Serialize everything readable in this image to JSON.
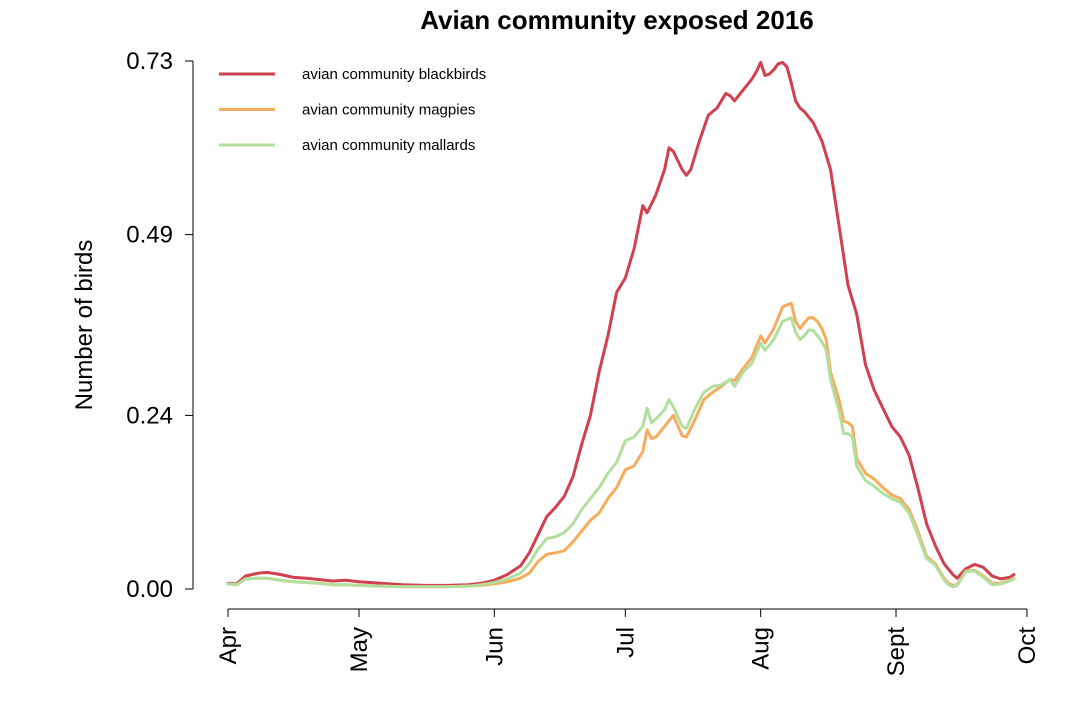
{
  "chart_data": {
    "type": "line",
    "title": "Avian community exposed 2016",
    "xlabel": "",
    "ylabel": "Number of birds",
    "ylim": [
      0,
      0.73
    ],
    "y_ticks": [
      "0.00",
      "0.24",
      "0.49",
      "0.73"
    ],
    "y_tick_values": [
      0,
      0.24,
      0.49,
      0.73
    ],
    "xlim": [
      "2016-04-01",
      "2016-10-01"
    ],
    "x_ticks": [
      {
        "label": "Apr",
        "date": "2016-04-01"
      },
      {
        "label": "May",
        "date": "2016-05-01"
      },
      {
        "label": "Jun",
        "date": "2016-06-01"
      },
      {
        "label": "Jul",
        "date": "2016-07-01"
      },
      {
        "label": "Aug",
        "date": "2016-08-01"
      },
      {
        "label": "Sept",
        "date": "2016-09-01"
      },
      {
        "label": "Oct",
        "date": "2016-10-01"
      }
    ],
    "grid": false,
    "legend": "top-left",
    "series": [
      {
        "name": "avian community blackbirds",
        "color": "#d1404f",
        "points": [
          [
            "2016-04-01",
            0.008
          ],
          [
            "2016-04-03",
            0.007
          ],
          [
            "2016-04-05",
            0.018
          ],
          [
            "2016-04-08",
            0.022
          ],
          [
            "2016-04-10",
            0.023
          ],
          [
            "2016-04-13",
            0.02
          ],
          [
            "2016-04-16",
            0.016
          ],
          [
            "2016-04-19",
            0.015
          ],
          [
            "2016-04-22",
            0.013
          ],
          [
            "2016-04-25",
            0.011
          ],
          [
            "2016-04-28",
            0.012
          ],
          [
            "2016-05-01",
            0.01
          ],
          [
            "2016-05-06",
            0.008
          ],
          [
            "2016-05-11",
            0.006
          ],
          [
            "2016-05-16",
            0.005
          ],
          [
            "2016-05-21",
            0.005
          ],
          [
            "2016-05-26",
            0.006
          ],
          [
            "2016-05-29",
            0.008
          ],
          [
            "2016-06-01",
            0.012
          ],
          [
            "2016-06-04",
            0.02
          ],
          [
            "2016-06-07",
            0.032
          ],
          [
            "2016-06-09",
            0.05
          ],
          [
            "2016-06-11",
            0.075
          ],
          [
            "2016-06-13",
            0.1
          ],
          [
            "2016-06-15",
            0.113
          ],
          [
            "2016-06-17",
            0.128
          ],
          [
            "2016-06-19",
            0.155
          ],
          [
            "2016-06-21",
            0.2
          ],
          [
            "2016-06-23",
            0.24
          ],
          [
            "2016-06-25",
            0.3
          ],
          [
            "2016-06-27",
            0.35
          ],
          [
            "2016-06-29",
            0.41
          ],
          [
            "2016-07-01",
            0.43
          ],
          [
            "2016-07-03",
            0.47
          ],
          [
            "2016-07-05",
            0.53
          ],
          [
            "2016-07-06",
            0.52
          ],
          [
            "2016-07-08",
            0.545
          ],
          [
            "2016-07-10",
            0.58
          ],
          [
            "2016-07-11",
            0.61
          ],
          [
            "2016-07-12",
            0.605
          ],
          [
            "2016-07-14",
            0.58
          ],
          [
            "2016-07-15",
            0.572
          ],
          [
            "2016-07-16",
            0.58
          ],
          [
            "2016-07-18",
            0.62
          ],
          [
            "2016-07-20",
            0.655
          ],
          [
            "2016-07-22",
            0.665
          ],
          [
            "2016-07-23",
            0.675
          ],
          [
            "2016-07-24",
            0.685
          ],
          [
            "2016-07-25",
            0.682
          ],
          [
            "2016-07-26",
            0.675
          ],
          [
            "2016-07-28",
            0.69
          ],
          [
            "2016-07-30",
            0.705
          ],
          [
            "2016-07-31",
            0.715
          ],
          [
            "2016-08-01",
            0.728
          ],
          [
            "2016-08-02",
            0.71
          ],
          [
            "2016-08-03",
            0.712
          ],
          [
            "2016-08-04",
            0.718
          ],
          [
            "2016-08-05",
            0.726
          ],
          [
            "2016-08-06",
            0.728
          ],
          [
            "2016-08-07",
            0.722
          ],
          [
            "2016-08-08",
            0.7
          ],
          [
            "2016-08-09",
            0.675
          ],
          [
            "2016-08-10",
            0.665
          ],
          [
            "2016-08-11",
            0.66
          ],
          [
            "2016-08-13",
            0.645
          ],
          [
            "2016-08-15",
            0.62
          ],
          [
            "2016-08-17",
            0.58
          ],
          [
            "2016-08-19",
            0.5
          ],
          [
            "2016-08-21",
            0.42
          ],
          [
            "2016-08-23",
            0.38
          ],
          [
            "2016-08-25",
            0.31
          ],
          [
            "2016-08-27",
            0.275
          ],
          [
            "2016-08-29",
            0.25
          ],
          [
            "2016-08-31",
            0.225
          ],
          [
            "2016-09-02",
            0.21
          ],
          [
            "2016-09-04",
            0.185
          ],
          [
            "2016-09-06",
            0.14
          ],
          [
            "2016-09-08",
            0.09
          ],
          [
            "2016-09-10",
            0.06
          ],
          [
            "2016-09-12",
            0.035
          ],
          [
            "2016-09-14",
            0.02
          ],
          [
            "2016-09-15",
            0.015
          ],
          [
            "2016-09-17",
            0.028
          ],
          [
            "2016-09-19",
            0.034
          ],
          [
            "2016-09-21",
            0.03
          ],
          [
            "2016-09-23",
            0.018
          ],
          [
            "2016-09-25",
            0.014
          ],
          [
            "2016-09-27",
            0.016
          ],
          [
            "2016-09-28",
            0.02
          ]
        ]
      },
      {
        "name": "avian community magpies",
        "color": "#f6ac5d",
        "points": [
          [
            "2016-04-01",
            0.007
          ],
          [
            "2016-04-03",
            0.006
          ],
          [
            "2016-04-05",
            0.014
          ],
          [
            "2016-04-08",
            0.015
          ],
          [
            "2016-04-10",
            0.015
          ],
          [
            "2016-04-13",
            0.012
          ],
          [
            "2016-04-16",
            0.01
          ],
          [
            "2016-04-19",
            0.009
          ],
          [
            "2016-04-22",
            0.008
          ],
          [
            "2016-04-25",
            0.006
          ],
          [
            "2016-04-28",
            0.006
          ],
          [
            "2016-05-01",
            0.005
          ],
          [
            "2016-05-06",
            0.004
          ],
          [
            "2016-05-11",
            0.003
          ],
          [
            "2016-05-16",
            0.003
          ],
          [
            "2016-05-21",
            0.003
          ],
          [
            "2016-05-26",
            0.004
          ],
          [
            "2016-05-29",
            0.005
          ],
          [
            "2016-06-01",
            0.007
          ],
          [
            "2016-06-04",
            0.01
          ],
          [
            "2016-06-07",
            0.015
          ],
          [
            "2016-06-09",
            0.022
          ],
          [
            "2016-06-11",
            0.038
          ],
          [
            "2016-06-13",
            0.048
          ],
          [
            "2016-06-15",
            0.05
          ],
          [
            "2016-06-17",
            0.053
          ],
          [
            "2016-06-19",
            0.065
          ],
          [
            "2016-06-21",
            0.08
          ],
          [
            "2016-06-23",
            0.095
          ],
          [
            "2016-06-25",
            0.105
          ],
          [
            "2016-06-27",
            0.125
          ],
          [
            "2016-06-29",
            0.14
          ],
          [
            "2016-07-01",
            0.165
          ],
          [
            "2016-07-03",
            0.17
          ],
          [
            "2016-07-05",
            0.19
          ],
          [
            "2016-07-06",
            0.22
          ],
          [
            "2016-07-07",
            0.208
          ],
          [
            "2016-07-08",
            0.21
          ],
          [
            "2016-07-10",
            0.225
          ],
          [
            "2016-07-12",
            0.24
          ],
          [
            "2016-07-14",
            0.212
          ],
          [
            "2016-07-15",
            0.21
          ],
          [
            "2016-07-17",
            0.235
          ],
          [
            "2016-07-19",
            0.262
          ],
          [
            "2016-07-21",
            0.272
          ],
          [
            "2016-07-23",
            0.28
          ],
          [
            "2016-07-25",
            0.29
          ],
          [
            "2016-07-26",
            0.288
          ],
          [
            "2016-07-28",
            0.305
          ],
          [
            "2016-07-30",
            0.32
          ],
          [
            "2016-08-01",
            0.35
          ],
          [
            "2016-08-02",
            0.34
          ],
          [
            "2016-08-04",
            0.36
          ],
          [
            "2016-08-06",
            0.39
          ],
          [
            "2016-08-08",
            0.395
          ],
          [
            "2016-08-09",
            0.37
          ],
          [
            "2016-08-10",
            0.36
          ],
          [
            "2016-08-11",
            0.368
          ],
          [
            "2016-08-12",
            0.375
          ],
          [
            "2016-08-13",
            0.375
          ],
          [
            "2016-08-14",
            0.37
          ],
          [
            "2016-08-15",
            0.36
          ],
          [
            "2016-08-16",
            0.345
          ],
          [
            "2016-08-17",
            0.3
          ],
          [
            "2016-08-19",
            0.26
          ],
          [
            "2016-08-20",
            0.232
          ],
          [
            "2016-08-21",
            0.23
          ],
          [
            "2016-08-22",
            0.225
          ],
          [
            "2016-08-23",
            0.18
          ],
          [
            "2016-08-25",
            0.16
          ],
          [
            "2016-08-27",
            0.152
          ],
          [
            "2016-08-29",
            0.14
          ],
          [
            "2016-08-31",
            0.13
          ],
          [
            "2016-09-02",
            0.125
          ],
          [
            "2016-09-04",
            0.11
          ],
          [
            "2016-09-06",
            0.08
          ],
          [
            "2016-09-08",
            0.045
          ],
          [
            "2016-09-10",
            0.035
          ],
          [
            "2016-09-12",
            0.015
          ],
          [
            "2016-09-13",
            0.008
          ],
          [
            "2016-09-14",
            0.005
          ],
          [
            "2016-09-15",
            0.006
          ],
          [
            "2016-09-17",
            0.025
          ],
          [
            "2016-09-19",
            0.026
          ],
          [
            "2016-09-21",
            0.018
          ],
          [
            "2016-09-23",
            0.008
          ],
          [
            "2016-09-25",
            0.008
          ],
          [
            "2016-09-27",
            0.012
          ],
          [
            "2016-09-28",
            0.015
          ]
        ]
      },
      {
        "name": "avian community mallards",
        "color": "#b3df9e",
        "points": [
          [
            "2016-04-01",
            0.007
          ],
          [
            "2016-04-03",
            0.006
          ],
          [
            "2016-04-05",
            0.014
          ],
          [
            "2016-04-08",
            0.015
          ],
          [
            "2016-04-10",
            0.015
          ],
          [
            "2016-04-13",
            0.012
          ],
          [
            "2016-04-16",
            0.01
          ],
          [
            "2016-04-19",
            0.009
          ],
          [
            "2016-04-22",
            0.008
          ],
          [
            "2016-04-25",
            0.006
          ],
          [
            "2016-04-28",
            0.006
          ],
          [
            "2016-05-01",
            0.005
          ],
          [
            "2016-05-06",
            0.004
          ],
          [
            "2016-05-11",
            0.003
          ],
          [
            "2016-05-16",
            0.003
          ],
          [
            "2016-05-21",
            0.003
          ],
          [
            "2016-05-26",
            0.004
          ],
          [
            "2016-05-29",
            0.006
          ],
          [
            "2016-06-01",
            0.009
          ],
          [
            "2016-06-04",
            0.014
          ],
          [
            "2016-06-07",
            0.022
          ],
          [
            "2016-06-09",
            0.035
          ],
          [
            "2016-06-11",
            0.055
          ],
          [
            "2016-06-13",
            0.07
          ],
          [
            "2016-06-15",
            0.072
          ],
          [
            "2016-06-17",
            0.078
          ],
          [
            "2016-06-19",
            0.09
          ],
          [
            "2016-06-21",
            0.11
          ],
          [
            "2016-06-23",
            0.125
          ],
          [
            "2016-06-25",
            0.14
          ],
          [
            "2016-06-27",
            0.16
          ],
          [
            "2016-06-29",
            0.175
          ],
          [
            "2016-07-01",
            0.205
          ],
          [
            "2016-07-03",
            0.21
          ],
          [
            "2016-07-05",
            0.225
          ],
          [
            "2016-07-06",
            0.25
          ],
          [
            "2016-07-07",
            0.23
          ],
          [
            "2016-07-08",
            0.235
          ],
          [
            "2016-07-10",
            0.248
          ],
          [
            "2016-07-11",
            0.262
          ],
          [
            "2016-07-12",
            0.252
          ],
          [
            "2016-07-14",
            0.225
          ],
          [
            "2016-07-15",
            0.222
          ],
          [
            "2016-07-17",
            0.25
          ],
          [
            "2016-07-19",
            0.272
          ],
          [
            "2016-07-21",
            0.28
          ],
          [
            "2016-07-23",
            0.282
          ],
          [
            "2016-07-25",
            0.29
          ],
          [
            "2016-07-26",
            0.28
          ],
          [
            "2016-07-28",
            0.3
          ],
          [
            "2016-07-30",
            0.312
          ],
          [
            "2016-08-01",
            0.34
          ],
          [
            "2016-08-02",
            0.33
          ],
          [
            "2016-08-04",
            0.345
          ],
          [
            "2016-08-06",
            0.37
          ],
          [
            "2016-08-08",
            0.375
          ],
          [
            "2016-08-09",
            0.355
          ],
          [
            "2016-08-10",
            0.345
          ],
          [
            "2016-08-11",
            0.35
          ],
          [
            "2016-08-12",
            0.358
          ],
          [
            "2016-08-13",
            0.358
          ],
          [
            "2016-08-14",
            0.35
          ],
          [
            "2016-08-15",
            0.342
          ],
          [
            "2016-08-16",
            0.33
          ],
          [
            "2016-08-17",
            0.29
          ],
          [
            "2016-08-19",
            0.245
          ],
          [
            "2016-08-20",
            0.215
          ],
          [
            "2016-08-21",
            0.215
          ],
          [
            "2016-08-22",
            0.21
          ],
          [
            "2016-08-23",
            0.17
          ],
          [
            "2016-08-25",
            0.15
          ],
          [
            "2016-08-27",
            0.142
          ],
          [
            "2016-08-29",
            0.132
          ],
          [
            "2016-08-31",
            0.125
          ],
          [
            "2016-09-02",
            0.12
          ],
          [
            "2016-09-04",
            0.105
          ],
          [
            "2016-09-06",
            0.075
          ],
          [
            "2016-09-08",
            0.042
          ],
          [
            "2016-09-10",
            0.033
          ],
          [
            "2016-09-12",
            0.013
          ],
          [
            "2016-09-13",
            0.006
          ],
          [
            "2016-09-14",
            0.003
          ],
          [
            "2016-09-15",
            0.005
          ],
          [
            "2016-09-17",
            0.024
          ],
          [
            "2016-09-19",
            0.025
          ],
          [
            "2016-09-21",
            0.016
          ],
          [
            "2016-09-23",
            0.006
          ],
          [
            "2016-09-25",
            0.007
          ],
          [
            "2016-09-27",
            0.011
          ],
          [
            "2016-09-28",
            0.014
          ]
        ]
      }
    ]
  }
}
